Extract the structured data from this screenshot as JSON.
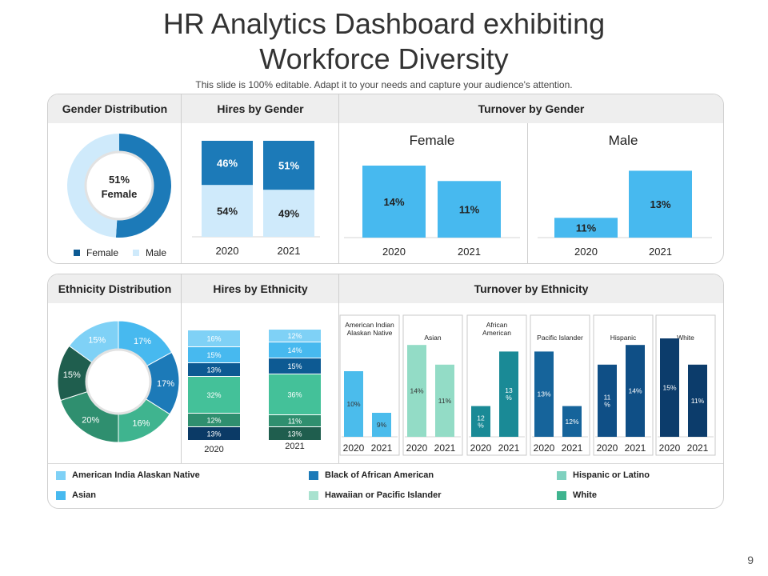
{
  "title_line1": "HR Analytics Dashboard exhibiting",
  "title_line2": "Workforce Diversity",
  "subtitle": "This slide is 100% editable. Adapt it to your needs and capture your audience's attention.",
  "page_number": "9",
  "colors": {
    "dark_navy": "#0b3a66",
    "navy": "#0d5a93",
    "blue": "#1c7ab8",
    "sky": "#47b9ef",
    "light_sky": "#7fd1f6",
    "pale_blue": "#cfeafb",
    "teal_dark": "#1f5e4e",
    "teal": "#2f8f6f",
    "mint": "#56c4a0",
    "pale_mint": "#a9e2cf"
  },
  "sections": {
    "gender_distribution": "Gender Distribution",
    "hires_by_gender": "Hires by Gender",
    "turnover_by_gender": "Turnover by Gender",
    "ethnicity_distribution": "Ethnicity Distribution",
    "hires_by_ethnicity": "Hires by Ethnicity",
    "turnover_by_ethnicity": "Turnover by Ethnicity"
  },
  "gender_legend": [
    "Female",
    "Male"
  ],
  "ethnicity_legend": [
    {
      "label": "American India Alaskan Native",
      "color": "#7fd1f6"
    },
    {
      "label": "Black of African American",
      "color": "#1c7ab8"
    },
    {
      "label": "Hispanic or Latino",
      "color": "#7fd1bf"
    },
    {
      "label": "Asian",
      "color": "#47b9ef"
    },
    {
      "label": "Hawaiian or Pacific Islander",
      "color": "#a9e2cf"
    },
    {
      "label": "White",
      "color": "#3fb48f"
    }
  ],
  "chart_data": [
    {
      "id": "gender_distribution",
      "type": "pie",
      "title": "Gender Distribution",
      "center_label": [
        "51%",
        "Female"
      ],
      "slices": [
        {
          "name": "Female",
          "value": 51
        },
        {
          "name": "Male",
          "value": 49
        }
      ]
    },
    {
      "id": "hires_by_gender",
      "type": "bar",
      "title": "Hires by Gender",
      "categories": [
        "2020",
        "2021"
      ],
      "stacked": true,
      "series": [
        {
          "name": "Male",
          "values": [
            54,
            49
          ],
          "labels": [
            "54%",
            "49%"
          ]
        },
        {
          "name": "Female",
          "values": [
            46,
            51
          ],
          "labels": [
            "46%",
            "51%"
          ]
        }
      ]
    },
    {
      "id": "turnover_female",
      "type": "bar",
      "title": "Female",
      "categories": [
        "2020",
        "2021"
      ],
      "values": [
        14,
        11
      ],
      "labels": [
        "14%",
        "11%"
      ]
    },
    {
      "id": "turnover_male",
      "type": "bar",
      "title": "Male",
      "categories": [
        "2020",
        "2021"
      ],
      "values": [
        11,
        13
      ],
      "labels": [
        "11%",
        "13%"
      ]
    },
    {
      "id": "ethnicity_distribution",
      "type": "pie",
      "title": "Ethnicity Distribution",
      "slices": [
        {
          "value": 17,
          "label": "17%"
        },
        {
          "value": 17,
          "label": "17%"
        },
        {
          "value": 16,
          "label": "16%"
        },
        {
          "value": 20,
          "label": "20%"
        },
        {
          "value": 15,
          "label": "15%"
        },
        {
          "value": 15,
          "label": "15%"
        }
      ]
    },
    {
      "id": "hires_by_ethnicity",
      "type": "bar",
      "title": "Hires by Ethnicity",
      "stacked": true,
      "categories": [
        "2020",
        "2021"
      ],
      "stacks": [
        {
          "category": "2020",
          "segments": [
            {
              "value": 13,
              "label": "13%"
            },
            {
              "value": 12,
              "label": "12%"
            },
            {
              "value": 32,
              "label": "32%"
            },
            {
              "value": 13,
              "label": "13%"
            },
            {
              "value": 15,
              "label": "15%"
            },
            {
              "value": 16,
              "label": "16%"
            }
          ]
        },
        {
          "category": "2021",
          "segments": [
            {
              "value": 13,
              "label": "13%"
            },
            {
              "value": 11,
              "label": "11%"
            },
            {
              "value": 36,
              "label": "36%"
            },
            {
              "value": 15,
              "label": "15%"
            },
            {
              "value": 14,
              "label": "14%"
            },
            {
              "value": 12,
              "label": "12%"
            }
          ]
        }
      ]
    },
    {
      "id": "turnover_by_ethnicity",
      "type": "bar",
      "title": "Turnover by Ethnicity",
      "categories": [
        "2020",
        "2021"
      ],
      "groups": [
        {
          "title": [
            "American Indian",
            "Alaskan Native"
          ],
          "values": [
            10,
            9
          ],
          "labels": [
            [
              "10%"
            ],
            [
              "9%"
            ]
          ]
        },
        {
          "title": [
            "Asian"
          ],
          "values": [
            14,
            11
          ],
          "labels": [
            [
              "14%"
            ],
            [
              "11%"
            ]
          ]
        },
        {
          "title": [
            "African",
            "American"
          ],
          "values": [
            12,
            13
          ],
          "labels": [
            [
              "12",
              "%"
            ],
            [
              "13",
              "%"
            ]
          ]
        },
        {
          "title": [
            "Pacific Islander"
          ],
          "values": [
            13,
            12
          ],
          "labels": [
            [
              "13%"
            ],
            [
              "12%"
            ]
          ]
        },
        {
          "title": [
            "Hispanic"
          ],
          "values": [
            11,
            14
          ],
          "labels": [
            [
              "11",
              "%"
            ],
            [
              "14%"
            ]
          ]
        },
        {
          "title": [
            "White"
          ],
          "values": [
            15,
            11
          ],
          "labels": [
            [
              "15%"
            ],
            [
              "11%"
            ]
          ]
        }
      ]
    }
  ]
}
